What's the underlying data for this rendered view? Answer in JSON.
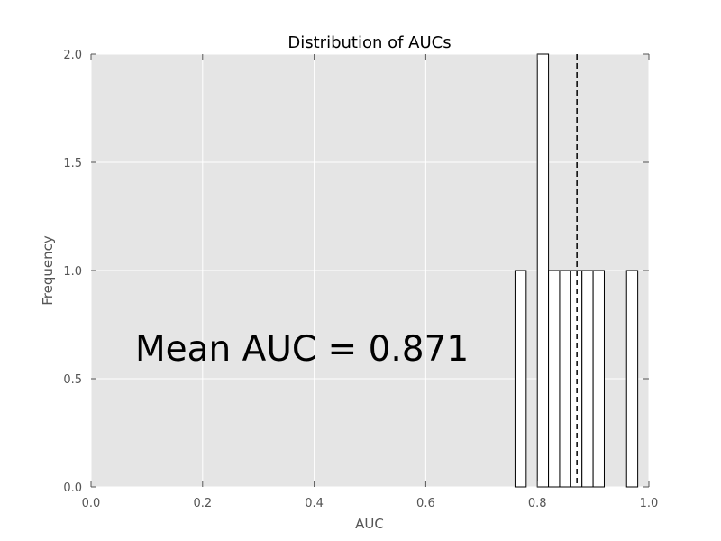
{
  "chart_data": {
    "type": "bar",
    "title": "Distribution of AUCs",
    "xlabel": "AUC",
    "ylabel": "Frequency",
    "xlim": [
      0.0,
      1.0
    ],
    "ylim": [
      0.0,
      2.0
    ],
    "xticks": [
      "0.0",
      "0.2",
      "0.4",
      "0.6",
      "0.8",
      "1.0"
    ],
    "yticks": [
      "0.0",
      "0.5",
      "1.0",
      "1.5",
      "2.0"
    ],
    "bins": [
      {
        "start": 0.76,
        "end": 0.78,
        "count": 1
      },
      {
        "start": 0.8,
        "end": 0.82,
        "count": 2
      },
      {
        "start": 0.82,
        "end": 0.84,
        "count": 1
      },
      {
        "start": 0.84,
        "end": 0.86,
        "count": 1
      },
      {
        "start": 0.86,
        "end": 0.88,
        "count": 1
      },
      {
        "start": 0.88,
        "end": 0.9,
        "count": 1
      },
      {
        "start": 0.9,
        "end": 0.92,
        "count": 1
      },
      {
        "start": 0.96,
        "end": 0.98,
        "count": 1
      }
    ],
    "mean_line": 0.871,
    "annotation": "Mean AUC = 0.871",
    "grid": true,
    "colors": {
      "plot_background": "#e5e5e5",
      "grid": "#ffffff",
      "bar_fill": "#ffffff",
      "bar_edge": "#000000",
      "mean_line": "#000000",
      "tick_label": "#555555",
      "text": "#000000"
    }
  }
}
